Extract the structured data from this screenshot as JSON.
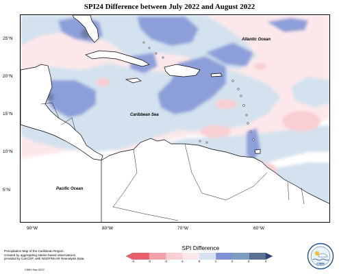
{
  "title": "SPI24 Difference between July 2022 and August 2022",
  "map": {
    "lat_labels": [
      "25°N",
      "20°N",
      "15°N",
      "10°N",
      "5°N"
    ],
    "lon_labels": [
      "90°W",
      "80°W",
      "70°W",
      "60°W"
    ],
    "ocean_labels": {
      "atlantic": "Atlantic Ocean",
      "caribbean": "Caribbean Sea",
      "pacific": "Pacific Ocean"
    },
    "extent": {
      "lon": [
        -92,
        -52
      ],
      "lat": [
        0.5,
        28
      ]
    }
  },
  "legend": {
    "title": "SPI Difference",
    "ticks": [
      "-4",
      "-3",
      "-2",
      "-1",
      "0",
      "1",
      "2",
      "3",
      "4"
    ],
    "colors": [
      "#e8606c",
      "#f2a1a8",
      "#f8cfd2",
      "#fce8ea",
      "#d3e2ee",
      "#7f90d4",
      "#7e9cc0",
      "#5a6f91",
      "#2e3f79"
    ]
  },
  "footnote": {
    "lines": [
      "Precipitation Map of the Caribbean Region.",
      "Created by aggregating station based observations,",
      "provided by CariCOF, with NCEP/NCAR Reanalysis Data."
    ],
    "credit": "CIMH Sep-2022"
  },
  "logo": {
    "text": "CIMH",
    "accent": "#1f4e8c"
  }
}
